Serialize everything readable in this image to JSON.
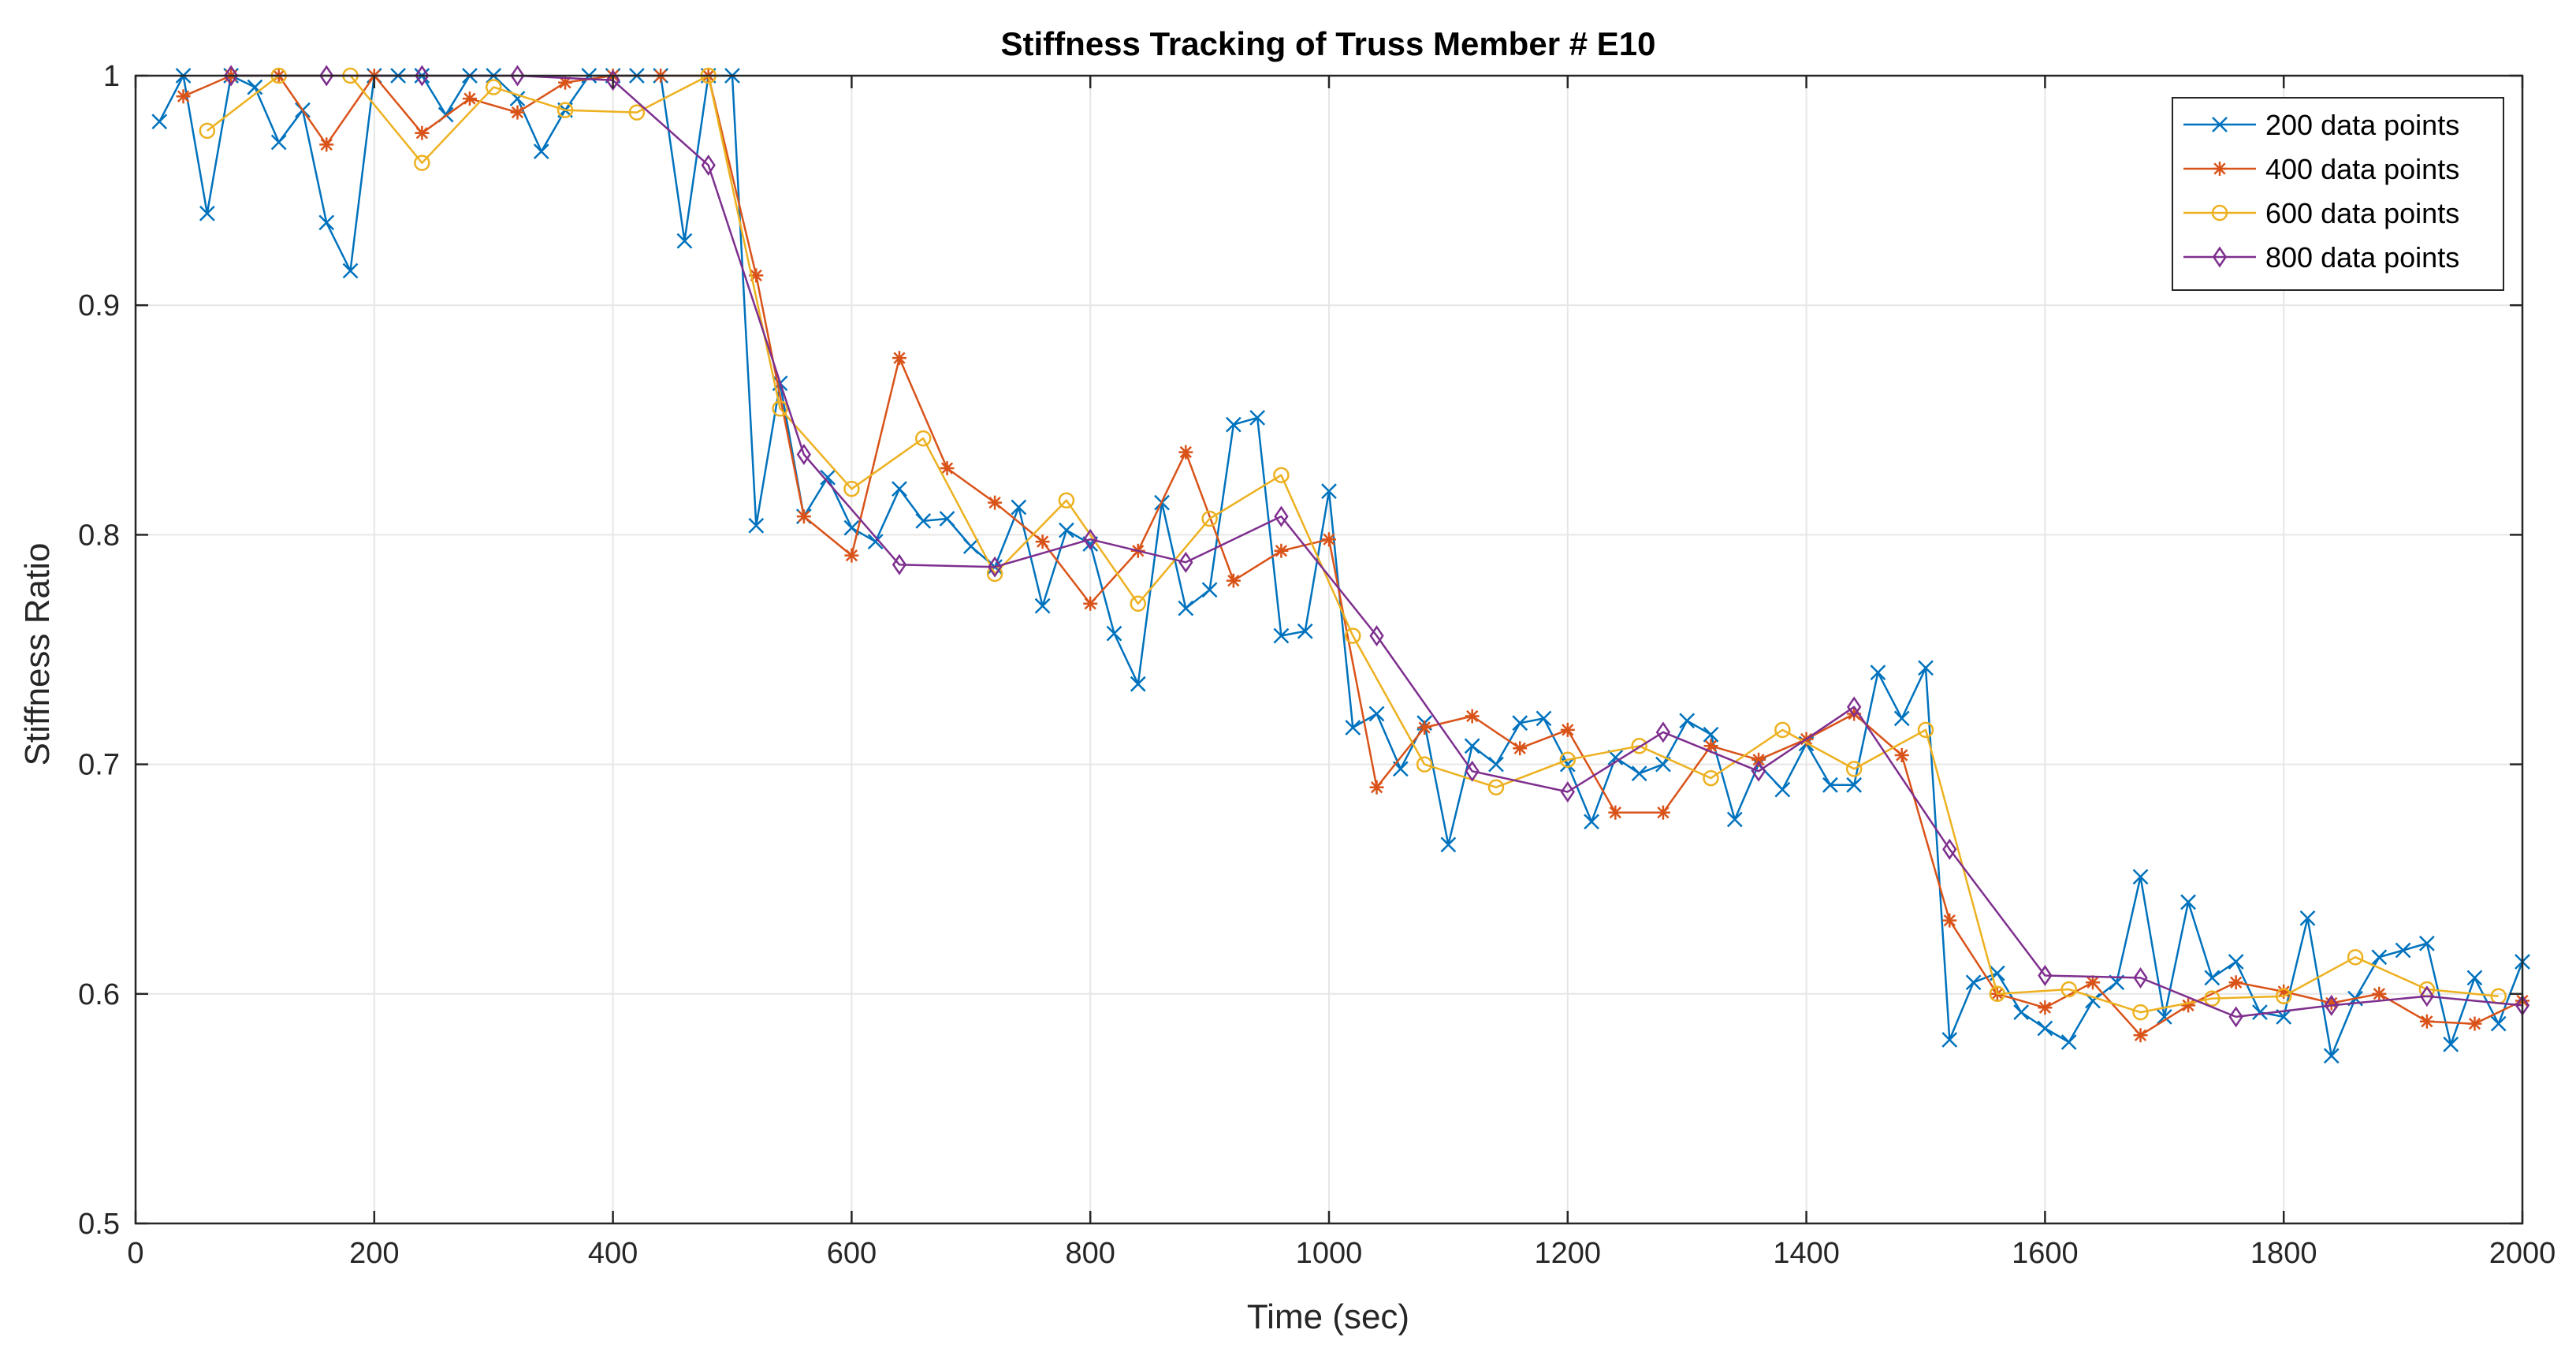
{
  "chart_data": {
    "type": "line",
    "title": "Stiffness Tracking of Truss Member # E10",
    "xlabel": "Time (sec)",
    "ylabel": "Stiffness Ratio",
    "xlim": [
      0,
      2000
    ],
    "ylim": [
      0.5,
      1
    ],
    "xticks": [
      0,
      200,
      400,
      600,
      800,
      1000,
      1200,
      1400,
      1600,
      1800,
      2000
    ],
    "yticks": [
      0.5,
      0.6,
      0.7,
      0.8,
      0.9,
      1
    ],
    "xtick_labels": [
      "0",
      "200",
      "400",
      "600",
      "800",
      "1000",
      "1200",
      "1400",
      "1600",
      "1800",
      "2000"
    ],
    "ytick_labels": [
      "0.5",
      "0.6",
      "0.7",
      "0.8",
      "0.9",
      "1"
    ],
    "grid": true,
    "legend_position": "top-right",
    "series": [
      {
        "name": "200 data points",
        "color": "#0072BD",
        "marker": "x",
        "x": [
          20,
          40,
          60,
          80,
          100,
          120,
          140,
          160,
          180,
          200,
          220,
          240,
          260,
          280,
          300,
          320,
          340,
          360,
          380,
          400,
          420,
          440,
          460,
          480,
          500,
          520,
          540,
          560,
          580,
          600,
          620,
          640,
          660,
          680,
          700,
          720,
          740,
          760,
          780,
          800,
          820,
          840,
          860,
          880,
          900,
          920,
          940,
          960,
          980,
          1000,
          1020,
          1040,
          1060,
          1080,
          1100,
          1120,
          1140,
          1160,
          1180,
          1200,
          1220,
          1240,
          1260,
          1280,
          1300,
          1320,
          1340,
          1360,
          1380,
          1400,
          1420,
          1440,
          1460,
          1480,
          1500,
          1520,
          1540,
          1560,
          1580,
          1600,
          1620,
          1640,
          1660,
          1680,
          1700,
          1720,
          1740,
          1760,
          1780,
          1800,
          1820,
          1840,
          1860,
          1880,
          1900,
          1920,
          1940,
          1960,
          1980,
          2000
        ],
        "values": [
          0.98,
          1.0,
          0.94,
          1.0,
          0.995,
          0.971,
          0.985,
          0.936,
          0.915,
          1.0,
          1.0,
          1.0,
          0.983,
          1.0,
          1.0,
          0.99,
          0.967,
          0.985,
          1.0,
          1.0,
          1.0,
          1.0,
          0.928,
          1.0,
          1.0,
          0.804,
          0.866,
          0.808,
          0.825,
          0.803,
          0.797,
          0.82,
          0.806,
          0.807,
          0.795,
          0.786,
          0.812,
          0.769,
          0.802,
          0.796,
          0.757,
          0.735,
          0.814,
          0.768,
          0.776,
          0.848,
          0.851,
          0.756,
          0.758,
          0.819,
          0.716,
          0.722,
          0.698,
          0.718,
          0.665,
          0.708,
          0.7,
          0.718,
          0.72,
          0.7,
          0.675,
          0.703,
          0.696,
          0.7,
          0.719,
          0.713,
          0.676,
          0.7,
          0.689,
          0.709,
          0.691,
          0.691,
          0.74,
          0.72,
          0.742,
          0.58,
          0.605,
          0.609,
          0.592,
          0.585,
          0.579,
          0.597,
          0.605,
          0.651,
          0.59,
          0.64,
          0.607,
          0.614,
          0.592,
          0.59,
          0.633,
          0.573,
          0.598,
          0.616,
          0.619,
          0.622,
          0.578,
          0.607,
          0.587,
          0.614
        ]
      },
      {
        "name": "400 data points",
        "color": "#D95319",
        "marker": "*",
        "x": [
          40,
          80,
          120,
          160,
          200,
          240,
          280,
          320,
          360,
          400,
          440,
          480,
          520,
          560,
          600,
          640,
          680,
          720,
          760,
          800,
          840,
          880,
          920,
          960,
          1000,
          1040,
          1080,
          1120,
          1160,
          1200,
          1240,
          1280,
          1320,
          1360,
          1400,
          1440,
          1480,
          1520,
          1560,
          1600,
          1640,
          1680,
          1720,
          1760,
          1800,
          1840,
          1880,
          1920,
          1960,
          2000
        ],
        "values": [
          0.991,
          1.0,
          1.0,
          0.97,
          1.0,
          0.975,
          0.99,
          0.984,
          0.997,
          1.0,
          1.0,
          1.0,
          0.913,
          0.808,
          0.791,
          0.877,
          0.829,
          0.814,
          0.797,
          0.77,
          0.793,
          0.836,
          0.78,
          0.793,
          0.798,
          0.69,
          0.716,
          0.721,
          0.707,
          0.715,
          0.679,
          0.679,
          0.708,
          0.702,
          0.711,
          0.722,
          0.704,
          0.632,
          0.6,
          0.594,
          0.605,
          0.582,
          0.595,
          0.605,
          0.601,
          0.596,
          0.6,
          0.588,
          0.587,
          0.597
        ]
      },
      {
        "name": "600 data points",
        "color": "#EDB120",
        "marker": "o",
        "x": [
          60,
          120,
          180,
          240,
          300,
          360,
          420,
          480,
          540,
          600,
          660,
          720,
          780,
          840,
          900,
          960,
          1020,
          1080,
          1140,
          1200,
          1260,
          1320,
          1380,
          1440,
          1500,
          1560,
          1620,
          1680,
          1740,
          1800,
          1860,
          1920,
          1980
        ],
        "values": [
          0.976,
          1.0,
          1.0,
          0.962,
          0.995,
          0.985,
          0.984,
          1.0,
          0.855,
          0.82,
          0.842,
          0.783,
          0.815,
          0.77,
          0.807,
          0.826,
          0.756,
          0.7,
          0.69,
          0.702,
          0.708,
          0.694,
          0.715,
          0.698,
          0.715,
          0.6,
          0.602,
          0.592,
          0.598,
          0.599,
          0.616,
          0.602,
          0.599
        ]
      },
      {
        "name": "800 data points",
        "color": "#7E2F8E",
        "marker": "diamond",
        "x": [
          80,
          160,
          240,
          320,
          400,
          480,
          560,
          640,
          720,
          800,
          880,
          960,
          1040,
          1120,
          1200,
          1280,
          1360,
          1440,
          1520,
          1600,
          1680,
          1760,
          1840,
          1920,
          2000
        ],
        "values": [
          1.0,
          1.0,
          1.0,
          1.0,
          0.998,
          0.961,
          0.835,
          0.787,
          0.786,
          0.798,
          0.788,
          0.808,
          0.756,
          0.697,
          0.688,
          0.714,
          0.697,
          0.725,
          0.663,
          0.608,
          0.607,
          0.59,
          0.595,
          0.599,
          0.595
        ]
      }
    ]
  }
}
